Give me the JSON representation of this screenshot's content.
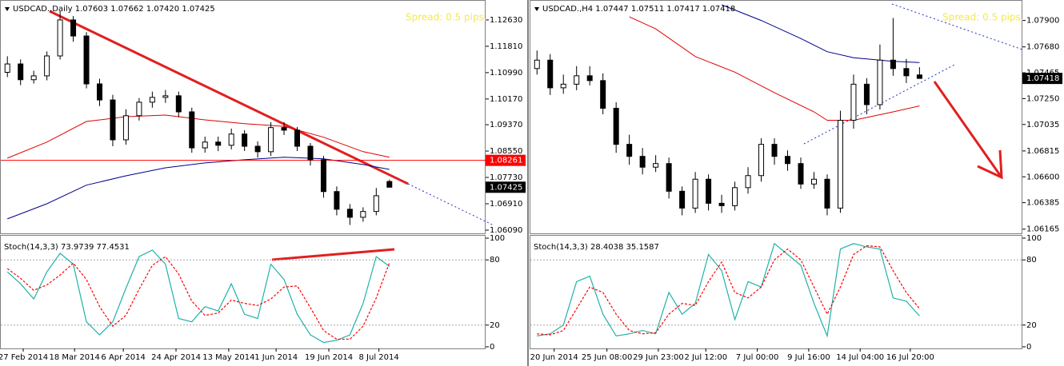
{
  "chart_data": [
    {
      "type": "candlestick",
      "title": "USDCAD.,Daily  1.07603 1.07662 1.07420 1.07425",
      "annotation": "Spread: 0.5 pips.",
      "xlim": [
        -0.5,
        36.3
      ],
      "ylim": [
        1.0599,
        1.1325
      ],
      "yticks": [
        {
          "value": 1.1263,
          "label": "1.12630"
        },
        {
          "value": 1.1181,
          "label": "1.11810"
        },
        {
          "value": 1.1099,
          "label": "1.10990"
        },
        {
          "value": 1.1017,
          "label": "1.10170"
        },
        {
          "value": 1.0937,
          "label": "1.09370"
        },
        {
          "value": 1.0855,
          "label": "1.08550"
        },
        {
          "value": 1.0773,
          "label": "1.07730"
        },
        {
          "value": 1.0691,
          "label": "1.06910"
        },
        {
          "value": 1.0609,
          "label": "1.06090"
        }
      ],
      "x": [
        0,
        1,
        2,
        3,
        4,
        5,
        6,
        7,
        8,
        9,
        10,
        11,
        12,
        13,
        14,
        15,
        16,
        17,
        18,
        19,
        20,
        21,
        22,
        23,
        24,
        25,
        26,
        27,
        28,
        29
      ],
      "open": [
        1.11,
        1.1126,
        1.1077,
        1.1089,
        1.1151,
        1.1263,
        1.1213,
        1.1064,
        1.1014,
        1.089,
        1.0965,
        1.1007,
        1.1022,
        1.1027,
        1.0977,
        1.0865,
        1.0883,
        1.0873,
        1.0908,
        1.087,
        1.0853,
        1.0928,
        1.092,
        1.087,
        1.0828,
        1.0729,
        1.0674,
        1.0649,
        1.0667,
        1.07603
      ],
      "high": [
        1.115,
        1.114,
        1.1105,
        1.1165,
        1.129,
        1.1275,
        1.1225,
        1.108,
        1.103,
        1.0985,
        1.102,
        1.104,
        1.1045,
        1.104,
        1.099,
        1.09,
        1.09,
        1.0925,
        1.092,
        1.0885,
        1.0945,
        1.0945,
        1.093,
        1.088,
        1.084,
        1.0745,
        1.069,
        1.068,
        1.074,
        1.07662
      ],
      "low": [
        1.1085,
        1.106,
        1.1065,
        1.1075,
        1.114,
        1.1195,
        1.105,
        1.0995,
        1.087,
        1.0875,
        1.095,
        1.099,
        1.1005,
        1.096,
        1.085,
        1.085,
        1.0855,
        1.086,
        1.0855,
        1.0835,
        1.084,
        1.0905,
        1.0855,
        1.081,
        1.071,
        1.0655,
        1.0625,
        1.0635,
        1.0655,
        1.0742
      ],
      "close": [
        1.1126,
        1.1077,
        1.1089,
        1.1151,
        1.1263,
        1.1213,
        1.1064,
        1.1014,
        1.089,
        1.0965,
        1.1007,
        1.1022,
        1.1027,
        1.0977,
        1.0865,
        1.0883,
        1.0873,
        1.0908,
        1.087,
        1.0853,
        1.0928,
        1.092,
        1.087,
        1.0828,
        1.0729,
        1.0674,
        1.0649,
        1.0667,
        1.0716,
        1.07425
      ],
      "series": [
        {
          "color": "#e00000",
          "x": [
            0,
            3,
            6,
            9,
            12,
            15,
            18,
            21,
            24,
            27,
            29
          ],
          "values": [
            1.0833,
            1.0883,
            1.0947,
            1.0962,
            1.0967,
            1.0952,
            1.094,
            1.0932,
            1.0898,
            1.0853,
            1.0836
          ]
        },
        {
          "color": "#00008b",
          "x": [
            0,
            3,
            6,
            9,
            12,
            15,
            18,
            21,
            24,
            27,
            29
          ],
          "values": [
            1.0644,
            1.0691,
            1.0749,
            1.0778,
            1.0803,
            1.0818,
            1.0828,
            1.0836,
            1.0831,
            1.0813,
            1.0798
          ]
        }
      ],
      "hline": {
        "value": 1.08261,
        "label": "1.08261",
        "color": "#ff0000"
      },
      "last": {
        "value": 1.07425,
        "label": "1.07425"
      }
    },
    {
      "type": "line",
      "title": "Stoch(14,3,3) 73.9739 77.4531",
      "xlim": [
        -0.5,
        36.3
      ],
      "ylim": [
        0,
        100
      ],
      "yticks": [
        100,
        80,
        20,
        0
      ],
      "xticks": [
        {
          "value": 1.2,
          "label": "27 Feb 2014"
        },
        {
          "value": 5.1,
          "label": "18 Mar 2014"
        },
        {
          "value": 8.8,
          "label": "6 Apr 2014"
        },
        {
          "value": 12.8,
          "label": "24 Apr 2014"
        },
        {
          "value": 16.8,
          "label": "13 May 2014"
        },
        {
          "value": 20.4,
          "label": "1 Jun 2014"
        },
        {
          "value": 24.4,
          "label": "19 Jun 2014"
        },
        {
          "value": 28.2,
          "label": "8 Jul 2014"
        }
      ],
      "x": [
        0,
        1,
        2,
        3,
        4,
        5,
        6,
        7,
        8,
        9,
        10,
        11,
        12,
        13,
        14,
        15,
        16,
        17,
        18,
        19,
        20,
        21,
        22,
        23,
        24,
        25,
        26,
        27,
        28,
        29
      ],
      "series": [
        {
          "color": "#20b2aa",
          "dash": false,
          "values": [
            69,
            58,
            44,
            69,
            86,
            76,
            23,
            11,
            23,
            54,
            83,
            89,
            76,
            26,
            23,
            37,
            33,
            58,
            30,
            26,
            76,
            62,
            30,
            11,
            4,
            6,
            11,
            40,
            83,
            73.9739
          ]
        },
        {
          "color": "#ff0000",
          "dash": true,
          "values": [
            72,
            63,
            52,
            57,
            66,
            77,
            62,
            37,
            19,
            29,
            53,
            75,
            83,
            67,
            42,
            29,
            31,
            43,
            40,
            38,
            44,
            55,
            56,
            36,
            15,
            7,
            7,
            19,
            45,
            77.4531
          ]
        }
      ]
    },
    {
      "type": "candlestick",
      "title": "USDCAD.,H4  1.07447 1.07511 1.07417 1.07418",
      "annotation": "Spread: 0.5 pips.",
      "xlim": [
        -0.5,
        36.8
      ],
      "ylim": [
        1.0613,
        1.0807
      ],
      "yticks": [
        {
          "value": 1.079,
          "label": "1.07900"
        },
        {
          "value": 1.0768,
          "label": "1.07680"
        },
        {
          "value": 1.07465,
          "label": "1.07465"
        },
        {
          "value": 1.0725,
          "label": "1.07250"
        },
        {
          "value": 1.07035,
          "label": "1.07035"
        },
        {
          "value": 1.06815,
          "label": "1.06815"
        },
        {
          "value": 1.066,
          "label": "1.06600"
        },
        {
          "value": 1.06385,
          "label": "1.06385"
        },
        {
          "value": 1.06165,
          "label": "1.06165"
        }
      ],
      "x": [
        0,
        1,
        2,
        3,
        4,
        5,
        6,
        7,
        8,
        9,
        10,
        11,
        12,
        13,
        14,
        15,
        16,
        17,
        18,
        19,
        20,
        21,
        22,
        23,
        24,
        25,
        26,
        27,
        28,
        29
      ],
      "open": [
        1.075,
        1.0757,
        1.0734,
        1.0737,
        1.0744,
        1.074,
        1.0717,
        1.0687,
        1.0677,
        1.0668,
        1.0671,
        1.0648,
        1.0634,
        1.0658,
        1.0638,
        1.0636,
        1.0651,
        1.0661,
        1.0687,
        1.0677,
        1.0671,
        1.0654,
        1.0658,
        1.0634,
        1.0707,
        1.0737,
        1.072,
        1.0757,
        1.075,
        1.07447
      ],
      "high": [
        1.0765,
        1.0762,
        1.0745,
        1.0752,
        1.0752,
        1.0746,
        1.0722,
        1.0695,
        1.0684,
        1.0678,
        1.0676,
        1.0652,
        1.0664,
        1.0662,
        1.0645,
        1.0656,
        1.0668,
        1.0692,
        1.0692,
        1.0682,
        1.0676,
        1.0664,
        1.0662,
        1.0715,
        1.0745,
        1.0742,
        1.077,
        1.0792,
        1.0758,
        1.07511
      ],
      "low": [
        1.0745,
        1.0728,
        1.0729,
        1.0732,
        1.0736,
        1.0712,
        1.068,
        1.067,
        1.0662,
        1.0664,
        1.0642,
        1.0628,
        1.063,
        1.0632,
        1.063,
        1.0632,
        1.0646,
        1.0656,
        1.067,
        1.0665,
        1.065,
        1.065,
        1.0628,
        1.063,
        1.07,
        1.0712,
        1.0716,
        1.0744,
        1.0738,
        1.07417
      ],
      "close": [
        1.0757,
        1.0734,
        1.0737,
        1.0744,
        1.074,
        1.0717,
        1.0687,
        1.0677,
        1.0668,
        1.0671,
        1.0648,
        1.0634,
        1.0658,
        1.0638,
        1.0636,
        1.0651,
        1.0661,
        1.0687,
        1.0677,
        1.0671,
        1.0654,
        1.0658,
        1.0634,
        1.0707,
        1.0737,
        1.072,
        1.0757,
        1.075,
        1.0744,
        1.07418
      ],
      "series": [
        {
          "color": "#e00000",
          "x": [
            7,
            9,
            12,
            15,
            18,
            21,
            22,
            24,
            27,
            29
          ],
          "values": [
            1.0793,
            1.0783,
            1.076,
            1.0747,
            1.073,
            1.0714,
            1.0707,
            1.0707,
            1.0714,
            1.0719
          ]
        },
        {
          "color": "#00008b",
          "x": [
            14,
            17,
            20,
            22,
            24,
            27,
            29
          ],
          "values": [
            1.0803,
            1.079,
            1.0775,
            1.0764,
            1.0759,
            1.0756,
            1.0755
          ]
        }
      ],
      "last": {
        "value": 1.07418,
        "label": "1.07418"
      }
    },
    {
      "type": "line",
      "title": "Stoch(14,3,3) 28.4038 35.1587",
      "xlim": [
        -0.5,
        36.8
      ],
      "ylim": [
        0,
        100
      ],
      "yticks": [
        100,
        80,
        20,
        0
      ],
      "xticks": [
        {
          "value": 1.3,
          "label": "20 Jun 2014"
        },
        {
          "value": 5.3,
          "label": "25 Jun 08:00"
        },
        {
          "value": 9.2,
          "label": "29 Jun 23:00"
        },
        {
          "value": 12.8,
          "label": "2 Jul 12:00"
        },
        {
          "value": 16.7,
          "label": "7 Jul 00:00"
        },
        {
          "value": 20.6,
          "label": "9 Jul 16:00"
        },
        {
          "value": 24.5,
          "label": "14 Jul 04:00"
        },
        {
          "value": 28.3,
          "label": "16 Jul 20:00"
        }
      ],
      "x": [
        0,
        1,
        2,
        3,
        4,
        5,
        6,
        7,
        8,
        9,
        10,
        11,
        12,
        13,
        14,
        15,
        16,
        17,
        18,
        19,
        20,
        21,
        22,
        23,
        24,
        25,
        26,
        27,
        28,
        29
      ],
      "series": [
        {
          "color": "#20b2aa",
          "dash": false,
          "values": [
            10,
            12,
            20,
            60,
            65,
            30,
            10,
            12,
            15,
            12,
            50,
            30,
            40,
            85,
            70,
            25,
            60,
            55,
            95,
            85,
            75,
            40,
            10,
            90,
            95,
            92,
            90,
            45,
            42,
            28.4038
          ]
        },
        {
          "color": "#ff0000",
          "dash": true,
          "values": [
            12,
            11,
            15,
            35,
            55,
            50,
            30,
            15,
            12,
            13,
            30,
            40,
            38,
            60,
            78,
            50,
            45,
            55,
            80,
            90,
            80,
            55,
            30,
            55,
            85,
            93,
            92,
            70,
            50,
            35.1587
          ]
        }
      ]
    }
  ]
}
